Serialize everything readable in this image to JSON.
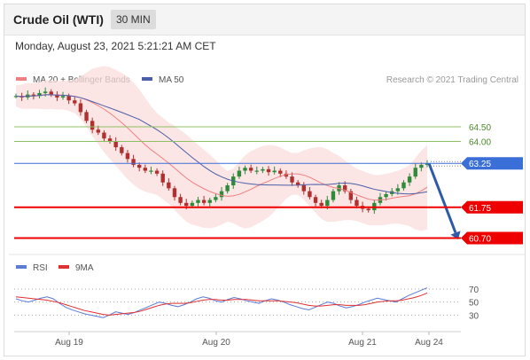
{
  "header": {
    "title": "Crude Oil (WTI)",
    "interval": "30 MIN"
  },
  "datetime": "Monday, August 23, 2021 5:21:21 AM CET",
  "legend": {
    "ma20_label": "MA 20 + Bollinger Bands",
    "ma50_label": "MA 50",
    "credit": "Research © 2021 Trading Central"
  },
  "rsi_legend": {
    "rsi_label": "RSI",
    "ma9_label": "9MA"
  },
  "colors": {
    "ma20": "#f08080",
    "ma50": "#4a5fa8",
    "bollinger": "#fbdcdc",
    "up": "#2e8b3a",
    "down": "#b03030",
    "pivot": "#3a6fd8",
    "support": "#ee0000",
    "resistance": "#8cc063",
    "rsi": "#5b7bd5",
    "ma9": "#e03030",
    "arrow": "#2f5aa8"
  },
  "chart_data": [
    {
      "type": "candlestick",
      "x_labels": [
        "Aug 19",
        "Aug 20",
        "Aug 21",
        "Aug 24"
      ],
      "price_range": [
        60.2,
        65.8
      ],
      "levels": [
        {
          "label": "64.50",
          "value": 64.5,
          "kind": "resistance"
        },
        {
          "label": "64.00",
          "value": 64.0,
          "kind": "resistance"
        },
        {
          "label": "63.25",
          "value": 63.25,
          "kind": "pivot"
        },
        {
          "label": "61.75",
          "value": 61.75,
          "kind": "support"
        },
        {
          "label": "60.70",
          "value": 60.7,
          "kind": "support"
        }
      ],
      "close_series": [
        65.55,
        65.5,
        65.6,
        65.55,
        65.65,
        65.7,
        65.6,
        65.5,
        65.55,
        65.4,
        65.3,
        65.0,
        64.7,
        64.4,
        64.3,
        64.1,
        64.0,
        63.8,
        63.6,
        63.4,
        63.2,
        63.1,
        63.0,
        63.0,
        62.9,
        62.6,
        62.4,
        62.1,
        61.9,
        61.8,
        61.9,
        62.0,
        61.9,
        62.0,
        62.1,
        62.3,
        62.5,
        62.8,
        63.0,
        63.1,
        63.0,
        63.0,
        63.05,
        62.95,
        63.0,
        62.9,
        62.8,
        62.6,
        62.5,
        62.3,
        62.1,
        61.9,
        61.8,
        62.0,
        62.3,
        62.5,
        62.3,
        62.0,
        61.8,
        61.7,
        61.65,
        61.9,
        62.1,
        62.2,
        62.3,
        62.4,
        62.6,
        62.8,
        63.1,
        63.2,
        63.25
      ],
      "arrow": {
        "from": 63.25,
        "to": 60.7
      }
    },
    {
      "type": "line",
      "name": "RSI",
      "y_ticks": [
        70,
        50,
        30
      ],
      "ylim": [
        10,
        85
      ],
      "series": [
        {
          "name": "RSI",
          "values": [
            55,
            52,
            50,
            53,
            56,
            58,
            55,
            48,
            42,
            38,
            35,
            32,
            30,
            28,
            26,
            30,
            35,
            33,
            31,
            34,
            38,
            42,
            46,
            50,
            48,
            45,
            43,
            46,
            50,
            55,
            58,
            56,
            52,
            50,
            54,
            57,
            55,
            52,
            50,
            48,
            52,
            55,
            53,
            50,
            46,
            43,
            40,
            38,
            42,
            46,
            50,
            48,
            44,
            41,
            43,
            46,
            50,
            53,
            56,
            54,
            52,
            50,
            55,
            60,
            64,
            68,
            72
          ]
        },
        {
          "name": "9MA",
          "values": [
            58,
            57,
            56,
            55,
            54,
            53,
            51,
            49,
            46,
            43,
            40,
            37,
            35,
            33,
            31,
            30,
            31,
            32,
            33,
            34,
            36,
            39,
            42,
            45,
            47,
            48,
            48,
            48,
            49,
            51,
            53,
            54,
            54,
            53,
            53,
            54,
            54,
            54,
            53,
            52,
            52,
            52,
            52,
            51,
            50,
            49,
            47,
            45,
            44,
            44,
            45,
            46,
            46,
            45,
            45,
            45,
            46,
            48,
            50,
            51,
            52,
            52,
            53,
            55,
            57,
            60,
            64
          ]
        }
      ]
    }
  ]
}
